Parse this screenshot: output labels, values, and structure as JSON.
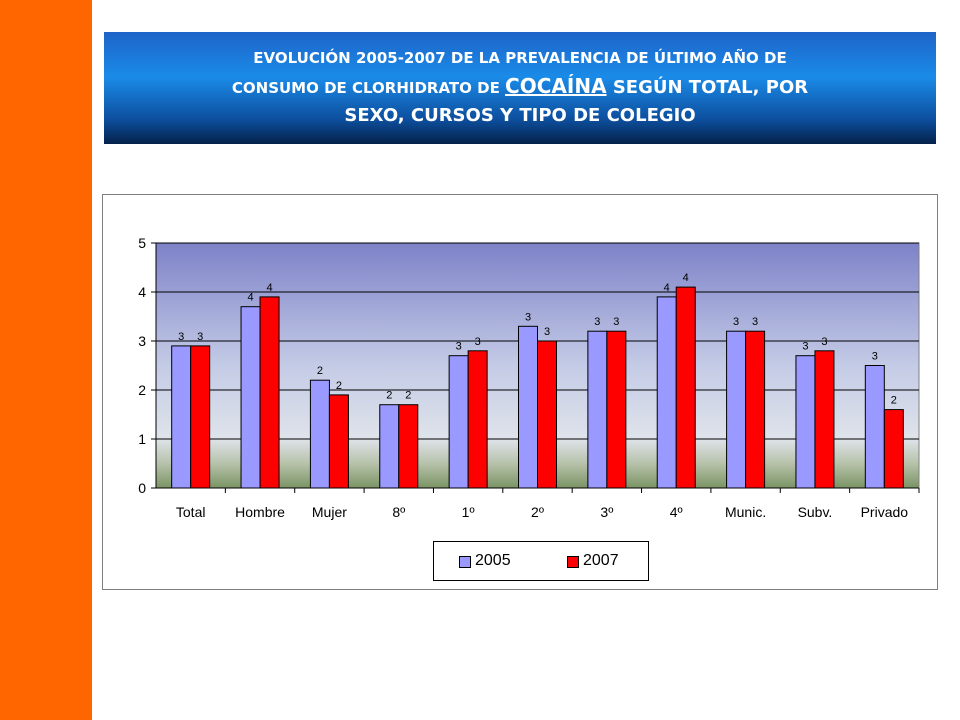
{
  "title": {
    "line1": "EVOLUCIÓN 2005-2007  DE LA PREVALENCIA DE ÚLTIMO AÑO DE",
    "line2_a": "CONSUMO DE  CLORHIDRATO DE ",
    "line2_b": "COCAÍNA",
    "line2_c": " SEGÚN TOTAL,  POR",
    "line3": "SEXO, CURSOS Y TIPO DE COLEGIO"
  },
  "colors": {
    "side_bar": "#ff6600",
    "series_2005": "#9999ff",
    "series_2007": "#ff0000"
  },
  "chart_data": {
    "type": "bar",
    "categories": [
      "Total",
      "Hombre",
      "Mujer",
      "8º",
      "1º",
      "2º",
      "3º",
      "4º",
      "Munic.",
      "Subv.",
      "Privado"
    ],
    "series": [
      {
        "name": "2005",
        "values": [
          2.9,
          3.7,
          2.2,
          1.7,
          2.7,
          3.3,
          3.2,
          3.9,
          3.2,
          2.7,
          2.5
        ],
        "labels": [
          "3",
          "4",
          "2",
          "2",
          "3",
          "3",
          "3",
          "4",
          "3",
          "3",
          "3"
        ]
      },
      {
        "name": "2007",
        "values": [
          2.9,
          3.9,
          1.9,
          1.7,
          2.8,
          3.0,
          3.2,
          4.1,
          3.2,
          2.8,
          1.6
        ],
        "labels": [
          "3",
          "4",
          "2",
          "2",
          "3",
          "3",
          "3",
          "4",
          "3",
          "3",
          "2"
        ]
      }
    ],
    "yticks": [
      "0",
      "1",
      "2",
      "3",
      "4",
      "5"
    ],
    "ylim": [
      0,
      5
    ],
    "grid": true,
    "legend_position": "bottom",
    "title": "",
    "xlabel": "",
    "ylabel": ""
  }
}
